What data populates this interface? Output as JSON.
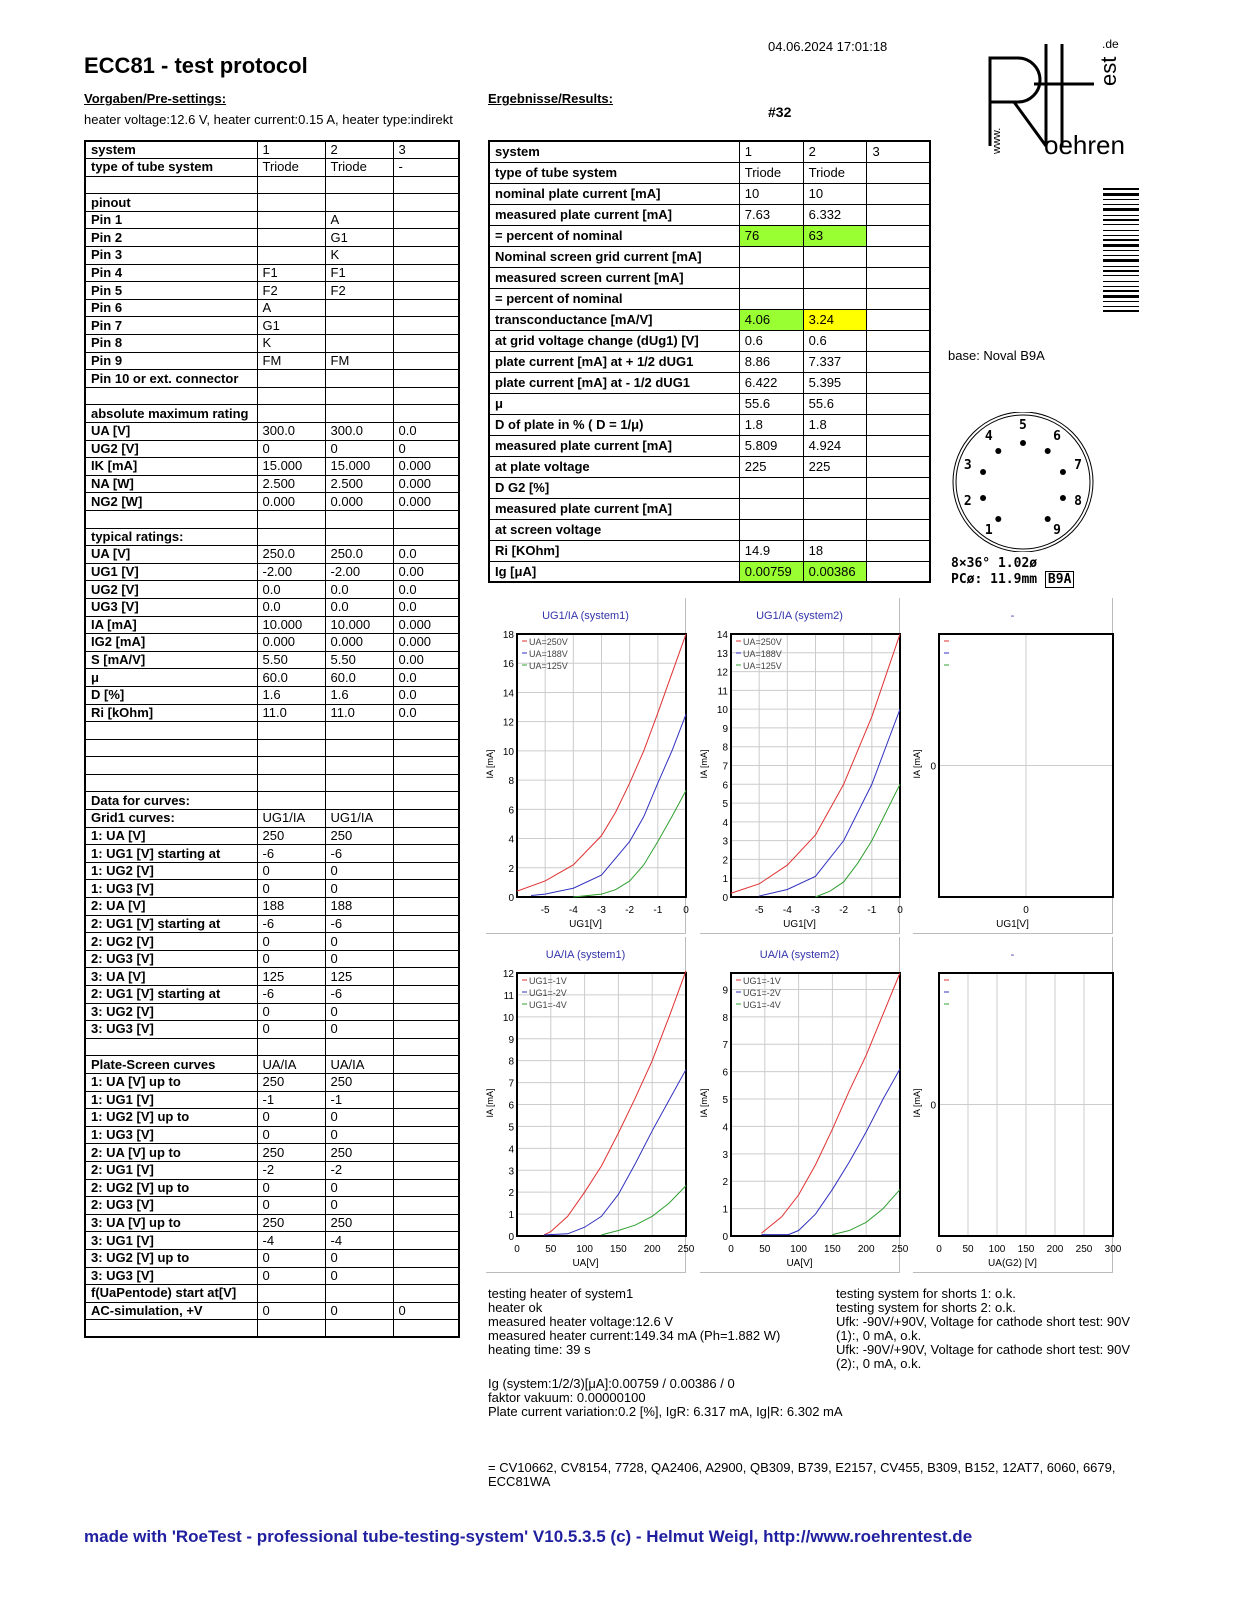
{
  "header": {
    "datetime": "04.06.2024  17:01:18",
    "title": "ECC81  -  test protocol",
    "presettings_label": "Vorgaben/Pre-settings:",
    "results_label": "Ergebnisse/Results:",
    "heater": "heater voltage:12.6 V, heater current:0.15 A, heater type:indirekt",
    "test_number": "#32"
  },
  "logo": {
    "text": "RoeTest",
    "www": "www.",
    "tld": ".de"
  },
  "left_table": [
    [
      "system",
      "1",
      "2",
      "3"
    ],
    [
      "type of tube system",
      "Triode",
      "Triode",
      "-"
    ],
    [
      "",
      "",
      "",
      ""
    ],
    [
      "pinout",
      "",
      "",
      ""
    ],
    [
      "Pin 1",
      "",
      "A",
      ""
    ],
    [
      "Pin 2",
      "",
      "G1",
      ""
    ],
    [
      "Pin 3",
      "",
      "K",
      ""
    ],
    [
      "Pin 4",
      "F1",
      "F1",
      ""
    ],
    [
      "Pin 5",
      "F2",
      "F2",
      ""
    ],
    [
      "Pin 6",
      "A",
      "",
      ""
    ],
    [
      "Pin 7",
      "G1",
      "",
      ""
    ],
    [
      "Pin 8",
      "K",
      "",
      ""
    ],
    [
      "Pin 9",
      "FM",
      "FM",
      ""
    ],
    [
      "Pin 10 or ext. connector",
      "",
      "",
      ""
    ],
    [
      "",
      "",
      "",
      ""
    ],
    [
      "absolute maximum rating",
      "",
      "",
      ""
    ],
    [
      "UA [V]",
      "300.0",
      "300.0",
      "0.0"
    ],
    [
      "UG2 [V]",
      "0",
      "0",
      "0"
    ],
    [
      "IK [mA]",
      "15.000",
      "15.000",
      "0.000"
    ],
    [
      "NA [W]",
      "2.500",
      "2.500",
      "0.000"
    ],
    [
      "NG2 [W]",
      "0.000",
      "0.000",
      "0.000"
    ],
    [
      "",
      "",
      "",
      ""
    ],
    [
      "typical ratings:",
      "",
      "",
      ""
    ],
    [
      "UA [V]",
      "250.0",
      "250.0",
      "0.0"
    ],
    [
      "UG1 [V]",
      "-2.00",
      "-2.00",
      "0.00"
    ],
    [
      "UG2 [V]",
      "0.0",
      "0.0",
      "0.0"
    ],
    [
      "UG3 [V]",
      "0.0",
      "0.0",
      "0.0"
    ],
    [
      "IA [mA]",
      "10.000",
      "10.000",
      "0.000"
    ],
    [
      "IG2 [mA]",
      "0.000",
      "0.000",
      "0.000"
    ],
    [
      "S [mA/V]",
      "5.50",
      "5.50",
      "0.00"
    ],
    [
      "μ",
      "60.0",
      "60.0",
      "0.0"
    ],
    [
      "D [%]",
      "1.6",
      "1.6",
      "0.0"
    ],
    [
      "Ri [kOhm]",
      "11.0",
      "11.0",
      "0.0"
    ],
    [
      "",
      "",
      "",
      ""
    ],
    [
      "",
      "",
      "",
      ""
    ],
    [
      "",
      "",
      "",
      ""
    ],
    [
      "",
      "",
      "",
      ""
    ],
    [
      "Data for curves:",
      "",
      "",
      ""
    ],
    [
      "Grid1 curves:",
      "UG1/IA",
      "UG1/IA",
      ""
    ],
    [
      "1: UA [V]",
      "250",
      "250",
      ""
    ],
    [
      "1: UG1 [V] starting at",
      "-6",
      "-6",
      ""
    ],
    [
      "1: UG2 [V]",
      "0",
      "0",
      ""
    ],
    [
      "1: UG3 [V]",
      "0",
      "0",
      ""
    ],
    [
      "2: UA [V]",
      "188",
      "188",
      ""
    ],
    [
      "2: UG1 [V] starting at",
      "-6",
      "-6",
      ""
    ],
    [
      "2: UG2 [V]",
      "0",
      "0",
      ""
    ],
    [
      "2: UG3 [V]",
      "0",
      "0",
      ""
    ],
    [
      "3: UA [V]",
      "125",
      "125",
      ""
    ],
    [
      "2: UG1 [V] starting at",
      "-6",
      "-6",
      ""
    ],
    [
      "3: UG2 [V]",
      "0",
      "0",
      ""
    ],
    [
      "3: UG3 [V]",
      "0",
      "0",
      ""
    ],
    [
      "",
      "",
      "",
      ""
    ],
    [
      "Plate-Screen curves",
      "UA/IA",
      "UA/IA",
      ""
    ],
    [
      "1: UA [V] up to",
      "250",
      "250",
      ""
    ],
    [
      "1: UG1 [V]",
      "-1",
      "-1",
      ""
    ],
    [
      "1: UG2 [V] up to",
      "0",
      "0",
      ""
    ],
    [
      "1: UG3 [V]",
      "0",
      "0",
      ""
    ],
    [
      "2: UA [V] up to",
      "250",
      "250",
      ""
    ],
    [
      "2: UG1 [V]",
      "-2",
      "-2",
      ""
    ],
    [
      "2: UG2 [V] up to",
      "0",
      "0",
      ""
    ],
    [
      "2: UG3 [V]",
      "0",
      "0",
      ""
    ],
    [
      "3: UA [V] up to",
      "250",
      "250",
      ""
    ],
    [
      "3: UG1 [V]",
      "-4",
      "-4",
      ""
    ],
    [
      "3: UG2 [V] up to",
      "0",
      "0",
      ""
    ],
    [
      "3: UG3 [V]",
      "0",
      "0",
      ""
    ],
    [
      "f(UaPentode) start at[V]",
      "",
      "",
      ""
    ],
    [
      "AC-simulation, +V",
      "0",
      "0",
      "0"
    ],
    [
      "",
      "",
      "",
      ""
    ]
  ],
  "right_table": [
    [
      "system",
      "1",
      "2",
      "3"
    ],
    [
      "type of tube system",
      "Triode",
      "Triode",
      ""
    ],
    [
      "nominal plate current [mA]",
      "10",
      "10",
      ""
    ],
    [
      "measured plate current [mA]",
      "7.63",
      "6.332",
      ""
    ],
    [
      "= percent of nominal",
      "76",
      "63",
      ""
    ],
    [
      "Nominal screen grid current [mA]",
      "",
      "",
      ""
    ],
    [
      "measured screen current [mA]",
      "",
      "",
      ""
    ],
    [
      "= percent of nominal",
      "",
      "",
      ""
    ],
    [
      "transconductance [mA/V]",
      "4.06",
      "3.24",
      ""
    ],
    [
      "at grid voltage change (dUg1) [V]",
      "0.6",
      "0.6",
      ""
    ],
    [
      "plate current [mA] at + 1/2 dUG1",
      "8.86",
      "7.337",
      ""
    ],
    [
      "plate current [mA] at - 1/2 dUG1",
      "6.422",
      "5.395",
      ""
    ],
    [
      "μ",
      "55.6",
      "55.6",
      ""
    ],
    [
      "D of plate in % ( D = 1/μ)",
      "1.8",
      "1.8",
      ""
    ],
    [
      "measured plate current [mA]",
      "5.809",
      "4.924",
      ""
    ],
    [
      "at plate voltage",
      "225",
      "225",
      ""
    ],
    [
      "D G2 [%]",
      "",
      "",
      ""
    ],
    [
      "measured plate current [mA]",
      "",
      "",
      ""
    ],
    [
      "at screen voltage",
      "",
      "",
      ""
    ],
    [
      "Ri [KOhm]",
      "14.9",
      "18",
      ""
    ],
    [
      "Ig [μA]",
      "0.00759",
      "0.00386",
      ""
    ]
  ],
  "highlights": {
    "green": "#99ff33",
    "yellow": "#ffff00",
    "cells": {
      "4-1": "green",
      "4-2": "green",
      "8-1": "green",
      "8-2": "yellow",
      "20-1": "green",
      "20-2": "green"
    }
  },
  "base": {
    "label": "base: Noval B9A",
    "pins": [
      "1",
      "2",
      "3",
      "4",
      "5",
      "6",
      "7",
      "8",
      "9"
    ],
    "info1": "8×36°  1.02ø",
    "info2": "PCø: 11.9mm",
    "code": "B9A"
  },
  "chart_data": [
    {
      "type": "line",
      "title": "UG1/IA (system1)",
      "xlabel": "UG1[V]",
      "ylabel": "IA [mA]",
      "xlim": [
        -6,
        0
      ],
      "ylim": [
        0,
        18
      ],
      "xticks": [
        -5,
        -4,
        -3,
        -2,
        -1,
        0
      ],
      "yticks": [
        0,
        2,
        4,
        6,
        8,
        10,
        12,
        14,
        16,
        18
      ],
      "grid": true,
      "legend": "top-left",
      "series": [
        {
          "name": "UA=250V",
          "color": "#e03030",
          "points": [
            [
              -6,
              0.4
            ],
            [
              -5,
              1.1
            ],
            [
              -4,
              2.2
            ],
            [
              -3,
              4.2
            ],
            [
              -2.5,
              5.8
            ],
            [
              -2,
              7.8
            ],
            [
              -1.5,
              10
            ],
            [
              -1,
              12.6
            ],
            [
              -0.5,
              15.3
            ],
            [
              0,
              18
            ]
          ]
        },
        {
          "name": "UA=188V",
          "color": "#3030c0",
          "points": [
            [
              -5.5,
              0.1
            ],
            [
              -5,
              0.2
            ],
            [
              -4.5,
              0.4
            ],
            [
              -4,
              0.6
            ],
            [
              -3,
              1.5
            ],
            [
              -2,
              3.8
            ],
            [
              -1.5,
              5.5
            ],
            [
              -1,
              7.8
            ],
            [
              -0.5,
              10
            ],
            [
              0,
              12.5
            ]
          ]
        },
        {
          "name": "UA=125V",
          "color": "#30a030",
          "points": [
            [
              -4,
              0
            ],
            [
              -3,
              0.2
            ],
            [
              -2.5,
              0.5
            ],
            [
              -2,
              1.1
            ],
            [
              -1.5,
              2.2
            ],
            [
              -1,
              3.8
            ],
            [
              -0.5,
              5.5
            ],
            [
              0,
              7.3
            ]
          ]
        }
      ]
    },
    {
      "type": "line",
      "title": "UG1/IA (system2)",
      "xlabel": "UG1[V]",
      "ylabel": "IA [mA]",
      "xlim": [
        -6,
        0
      ],
      "ylim": [
        0,
        14
      ],
      "xticks": [
        -5,
        -4,
        -3,
        -2,
        -1,
        0
      ],
      "yticks": [
        0,
        1,
        2,
        3,
        4,
        5,
        6,
        7,
        8,
        9,
        10,
        11,
        12,
        13,
        14
      ],
      "grid": true,
      "legend": "top-left",
      "series": [
        {
          "name": "UA=250V",
          "color": "#e03030",
          "points": [
            [
              -6,
              0.2
            ],
            [
              -5,
              0.7
            ],
            [
              -4,
              1.7
            ],
            [
              -3,
              3.3
            ],
            [
              -2,
              6
            ],
            [
              -1,
              9.6
            ],
            [
              -0.5,
              11.8
            ],
            [
              0,
              14
            ]
          ]
        },
        {
          "name": "UA=188V",
          "color": "#3030c0",
          "points": [
            [
              -5,
              0.05
            ],
            [
              -4,
              0.4
            ],
            [
              -3,
              1.1
            ],
            [
              -2,
              3
            ],
            [
              -1,
              6
            ],
            [
              0,
              10
            ]
          ]
        },
        {
          "name": "UA=125V",
          "color": "#30a030",
          "points": [
            [
              -3,
              0
            ],
            [
              -2.5,
              0.3
            ],
            [
              -2,
              0.8
            ],
            [
              -1.5,
              1.8
            ],
            [
              -1,
              3
            ],
            [
              -0.5,
              4.5
            ],
            [
              0,
              6
            ]
          ]
        }
      ]
    },
    {
      "type": "line",
      "title": "-",
      "xlabel": "UG1[V]",
      "ylabel": "IA [mA]",
      "xlim": [
        -1,
        1
      ],
      "ylim": [
        -1,
        1
      ],
      "xticks": [
        0
      ],
      "yticks": [
        0
      ],
      "grid": true,
      "legend": "top-left",
      "series": [
        {
          "name": "",
          "color": "#e03030",
          "points": []
        },
        {
          "name": "",
          "color": "#3030c0",
          "points": []
        },
        {
          "name": "",
          "color": "#30a030",
          "points": []
        }
      ]
    },
    {
      "type": "line",
      "title": "UA/IA (system1)",
      "xlabel": "UA[V]",
      "ylabel": "IA [mA]",
      "xlim": [
        0,
        250
      ],
      "ylim": [
        0,
        12
      ],
      "xticks": [
        0,
        50,
        100,
        150,
        200,
        250
      ],
      "yticks": [
        0,
        1,
        2,
        3,
        4,
        5,
        6,
        7,
        8,
        9,
        10,
        11,
        12
      ],
      "grid": true,
      "legend": "top-left",
      "series": [
        {
          "name": "UG1=-1V",
          "color": "#e03030",
          "points": [
            [
              40,
              0.05
            ],
            [
              50,
              0.2
            ],
            [
              75,
              0.9
            ],
            [
              100,
              2
            ],
            [
              125,
              3.2
            ],
            [
              150,
              4.7
            ],
            [
              175,
              6.3
            ],
            [
              200,
              8
            ],
            [
              225,
              10
            ],
            [
              250,
              12.1
            ]
          ]
        },
        {
          "name": "UG1=-2V",
          "color": "#3030c0",
          "points": [
            [
              40,
              0.05
            ],
            [
              75,
              0.1
            ],
            [
              100,
              0.4
            ],
            [
              125,
              0.9
            ],
            [
              150,
              1.9
            ],
            [
              175,
              3.3
            ],
            [
              200,
              4.8
            ],
            [
              225,
              6.2
            ],
            [
              250,
              7.6
            ]
          ]
        },
        {
          "name": "UG1=-4V",
          "color": "#30a030",
          "points": [
            [
              125,
              0.05
            ],
            [
              150,
              0.25
            ],
            [
              175,
              0.5
            ],
            [
              200,
              0.9
            ],
            [
              225,
              1.5
            ],
            [
              250,
              2.3
            ]
          ]
        }
      ]
    },
    {
      "type": "line",
      "title": "UA/IA (system2)",
      "xlabel": "UA[V]",
      "ylabel": "IA [mA]",
      "xlim": [
        0,
        250
      ],
      "ylim": [
        0,
        9.6
      ],
      "xticks": [
        0,
        50,
        100,
        150,
        200,
        250
      ],
      "yticks": [
        0,
        1,
        2,
        3,
        4,
        5,
        6,
        7,
        8,
        9
      ],
      "grid": true,
      "legend": "top-left",
      "series": [
        {
          "name": "UG1=-1V",
          "color": "#e03030",
          "points": [
            [
              45,
              0.1
            ],
            [
              75,
              0.7
            ],
            [
              100,
              1.5
            ],
            [
              125,
              2.6
            ],
            [
              150,
              3.9
            ],
            [
              175,
              5.3
            ],
            [
              200,
              6.6
            ],
            [
              225,
              8.1
            ],
            [
              250,
              9.6
            ]
          ]
        },
        {
          "name": "UG1=-2V",
          "color": "#3030c0",
          "points": [
            [
              45,
              0.05
            ],
            [
              85,
              0.05
            ],
            [
              100,
              0.2
            ],
            [
              125,
              0.8
            ],
            [
              150,
              1.7
            ],
            [
              175,
              2.7
            ],
            [
              200,
              3.8
            ],
            [
              225,
              5
            ],
            [
              250,
              6.1
            ]
          ]
        },
        {
          "name": "UG1=-4V",
          "color": "#30a030",
          "points": [
            [
              150,
              0.05
            ],
            [
              175,
              0.2
            ],
            [
              200,
              0.5
            ],
            [
              225,
              1
            ],
            [
              250,
              1.7
            ]
          ]
        }
      ]
    },
    {
      "type": "line",
      "title": "-",
      "xlabel": "UA(G2) [V]",
      "ylabel": "IA [mA]",
      "xlim": [
        0,
        300
      ],
      "ylim": [
        -1,
        1
      ],
      "xticks": [
        0,
        50,
        100,
        150,
        200,
        250,
        300
      ],
      "yticks": [
        0
      ],
      "grid": true,
      "legend": "top-left",
      "series": [
        {
          "name": "",
          "color": "#e03030",
          "points": []
        },
        {
          "name": "",
          "color": "#3030c0",
          "points": []
        },
        {
          "name": "",
          "color": "#30a030",
          "points": []
        }
      ]
    }
  ],
  "notes": {
    "heater": [
      "testing heater of system1",
      "heater ok",
      "measured heater voltage:12.6 V",
      "measured heater current:149.34 mA (Ph=1.882 W)",
      "heating time: 39 s"
    ],
    "shorts": [
      "testing system for shorts 1: o.k.",
      "testing system for shorts 2: o.k.",
      "Ufk: -90V/+90V, Voltage for cathode short test: 90V",
      "(1):, 0 mA, o.k.",
      "Ufk: -90V/+90V, Voltage for cathode short test: 90V",
      "(2):, 0 mA, o.k."
    ],
    "ig": [
      "Ig (system:1/2/3)[μA]:0.00759 / 0.00386 / 0",
      "faktor vakuum: 0.00000100",
      "Plate current variation:0.2 [%], IgR: 6.317 mA, Ig|R: 6.302 mA"
    ]
  },
  "aliases": "= CV10662,   CV8154,   7728,   QA2406,   A2900, QB309, B739, E2157, CV455,  B309,  B152,  12AT7, 6060, 6679, ECC81WA",
  "footer": "made with 'RoeTest - professional tube-testing-system' V10.5.3.5 (c) - Helmut Weigl, http://www.roehrentest.de"
}
